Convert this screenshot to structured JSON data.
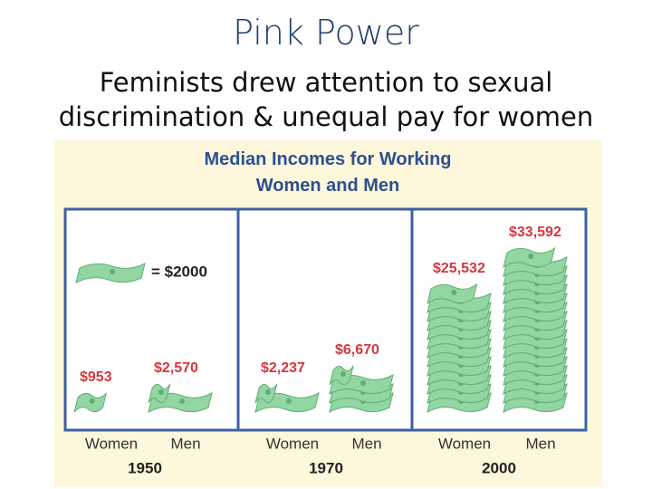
{
  "slide": {
    "title": "Pink Power",
    "subtitle": "Feminists drew attention to sexual discrimination & unequal pay for women"
  },
  "chart_data": {
    "type": "pictograph",
    "title": "Median Incomes for Working Women and Men",
    "unit": {
      "value": 2000,
      "label": "= $2000"
    },
    "categories": [
      "1950",
      "1970",
      "2000"
    ],
    "series": [
      {
        "name": "Women",
        "color": "#93d6a3",
        "values": [
          953,
          2237,
          25532
        ],
        "value_labels": [
          "$953",
          "$2,237",
          "$25,532"
        ]
      },
      {
        "name": "Men",
        "color": "#93d6a3",
        "values": [
          2570,
          6670,
          33592
        ],
        "value_labels": [
          "$2,570",
          "$6,670",
          "$33,592"
        ]
      }
    ],
    "label_color": "#d8353d"
  }
}
